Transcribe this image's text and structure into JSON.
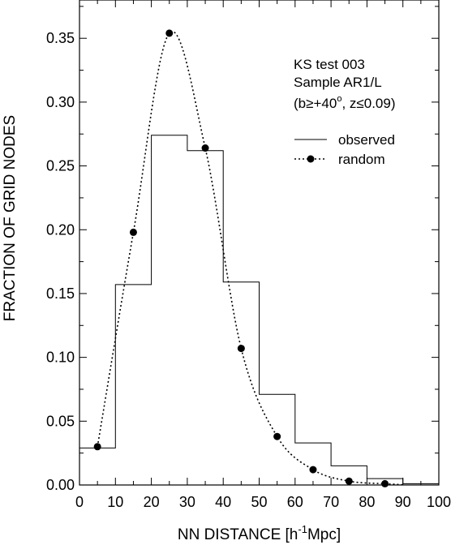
{
  "chart_data": {
    "type": "bar",
    "xlabel_main": "NN DISTANCE [h",
    "xlabel_sup": "-1",
    "xlabel_tail": "Mpc]",
    "ylabel": "FRACTION OF GRID NODES",
    "xlim": [
      0,
      100
    ],
    "ylim": [
      0,
      0.38
    ],
    "xticks": [
      "0",
      "10",
      "20",
      "30",
      "40",
      "50",
      "60",
      "70",
      "80",
      "90",
      "100"
    ],
    "yticks": [
      "0.00",
      "0.05",
      "0.10",
      "0.15",
      "0.20",
      "0.25",
      "0.30",
      "0.35"
    ],
    "annotation": {
      "line1": "KS test 003",
      "line2": "Sample AR1/L",
      "line3_open": "(b",
      "line3_ge": "≥",
      "line3_b": "+40",
      "line3_deg": "o",
      "line3_z": ", z",
      "line3_le": "≤",
      "line3_close": "0.09)"
    },
    "legend": {
      "placement": "top-right",
      "observed": "observed",
      "random": "random"
    },
    "series": [
      {
        "name": "observed",
        "style": "step",
        "bins": [
          [
            0,
            10
          ],
          [
            10,
            20
          ],
          [
            20,
            30
          ],
          [
            30,
            40
          ],
          [
            40,
            50
          ],
          [
            50,
            60
          ],
          [
            60,
            70
          ],
          [
            70,
            80
          ],
          [
            80,
            90
          ],
          [
            90,
            100
          ]
        ],
        "values": [
          0.029,
          0.157,
          0.274,
          0.262,
          0.159,
          0.071,
          0.033,
          0.015,
          0.005,
          0.001
        ]
      },
      {
        "name": "random",
        "style": "dotted-line-points",
        "x": [
          5,
          15,
          25,
          35,
          45,
          55,
          65,
          75,
          85
        ],
        "values": [
          0.03,
          0.198,
          0.354,
          0.264,
          0.107,
          0.038,
          0.012,
          0.003,
          0.001
        ]
      }
    ]
  }
}
